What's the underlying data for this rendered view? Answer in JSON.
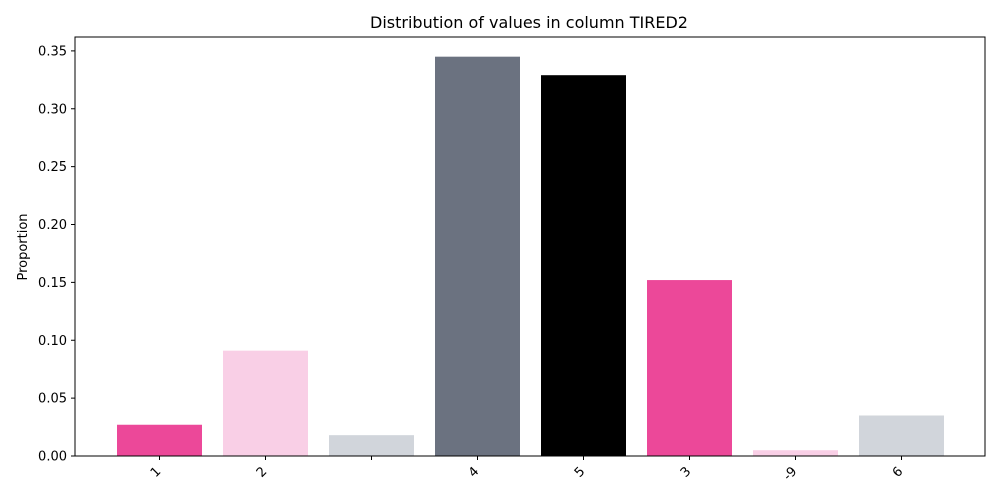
{
  "chart_data": {
    "type": "bar",
    "title": "Distribution of values in column TIRED2",
    "xlabel": "",
    "ylabel": "Proportion",
    "categories": [
      "1",
      "2",
      "",
      "4",
      "5",
      "3",
      "-9",
      "6"
    ],
    "values": [
      0.027,
      0.091,
      0.018,
      0.345,
      0.329,
      0.152,
      0.005,
      0.035
    ],
    "bar_colors": [
      "#ec4899",
      "#f9cfe6",
      "#d1d5db",
      "#6b7280",
      "#000000",
      "#ec4899",
      "#f9cfe6",
      "#d1d5db"
    ],
    "ylim": [
      0,
      0.362
    ],
    "yticks": [
      0.0,
      0.05,
      0.1,
      0.15,
      0.2,
      0.25,
      0.3,
      0.35
    ],
    "ytick_labels": [
      "0.00",
      "0.05",
      "0.10",
      "0.15",
      "0.20",
      "0.25",
      "0.30",
      "0.35"
    ],
    "grid": false,
    "legend": "none"
  }
}
